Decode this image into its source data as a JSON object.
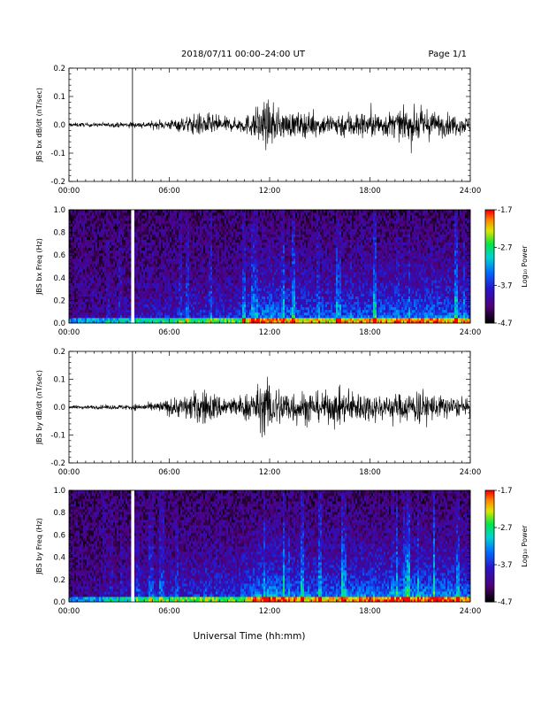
{
  "header": {
    "title": "2018/07/11  00:00–24:00 UT",
    "page": "Page 1/1"
  },
  "xlabel": "Universal Time (hh:mm)",
  "chart_data": [
    {
      "type": "line",
      "ylabel": "JBS bx dB/dt (nT/sec)",
      "xlim": [
        0,
        24
      ],
      "x_ticks": [
        "00:00",
        "06:00",
        "12:00",
        "18:00",
        "24:00"
      ],
      "ylim": [
        -0.2,
        0.2
      ],
      "y_ticks": [
        "0.2",
        "0.1",
        "0.0",
        "-0.1",
        "-0.2"
      ],
      "marker_hour": 3.8,
      "envelope": {
        "hours": [
          0,
          1,
          2,
          3,
          4,
          5,
          6,
          7,
          8,
          9,
          10,
          11,
          11.5,
          12,
          12.5,
          13,
          14,
          15,
          16,
          17,
          18,
          19,
          20,
          21,
          22,
          23,
          24
        ],
        "amplitude": [
          0.005,
          0.005,
          0.005,
          0.006,
          0.007,
          0.008,
          0.012,
          0.02,
          0.03,
          0.02,
          0.015,
          0.03,
          0.06,
          0.05,
          0.04,
          0.03,
          0.03,
          0.025,
          0.03,
          0.035,
          0.03,
          0.03,
          0.035,
          0.04,
          0.03,
          0.025,
          0.02
        ]
      }
    },
    {
      "type": "heatmap",
      "ylabel": "JBS bx Freq (Hz)",
      "xlim": [
        0,
        24
      ],
      "x_ticks": [
        "00:00",
        "06:00",
        "12:00",
        "18:00",
        "24:00"
      ],
      "ylim": [
        0,
        1.0
      ],
      "y_ticks": [
        "1.0",
        "0.8",
        "0.6",
        "0.4",
        "0.2",
        "0.0"
      ],
      "colorbar": {
        "label": "Log₁₀ Power",
        "ticks": [
          "-1.7",
          "-2.7",
          "-3.7",
          "-4.7"
        ],
        "range": [
          -4.7,
          -1.7
        ]
      },
      "gap_hour": 3.8,
      "activity": {
        "hours": [
          0,
          2,
          4,
          6,
          8,
          10,
          11,
          12,
          13,
          14,
          16,
          18,
          20,
          22,
          24
        ],
        "level": [
          0.1,
          0.15,
          0.25,
          0.3,
          0.35,
          0.35,
          0.55,
          0.65,
          0.55,
          0.5,
          0.5,
          0.55,
          0.55,
          0.6,
          0.5
        ]
      }
    },
    {
      "type": "line",
      "ylabel": "JBS by dB/dt (nT/sec)",
      "xlim": [
        0,
        24
      ],
      "x_ticks": [
        "00:00",
        "06:00",
        "12:00",
        "18:00",
        "24:00"
      ],
      "ylim": [
        -0.2,
        0.2
      ],
      "y_ticks": [
        "0.2",
        "0.1",
        "0.0",
        "-0.1",
        "-0.2"
      ],
      "marker_hour": 3.8,
      "envelope": {
        "hours": [
          0,
          1,
          2,
          3,
          4,
          5,
          6,
          7,
          8,
          9,
          10,
          11,
          11.5,
          12,
          12.5,
          13,
          14,
          15,
          16,
          17,
          18,
          19,
          20,
          21,
          22,
          23,
          24
        ],
        "amplitude": [
          0.004,
          0.005,
          0.005,
          0.006,
          0.008,
          0.01,
          0.02,
          0.03,
          0.045,
          0.03,
          0.025,
          0.04,
          0.06,
          0.07,
          0.05,
          0.045,
          0.04,
          0.035,
          0.04,
          0.04,
          0.035,
          0.03,
          0.035,
          0.045,
          0.03,
          0.025,
          0.015
        ]
      }
    },
    {
      "type": "heatmap",
      "ylabel": "JBS by Freq (Hz)",
      "xlim": [
        0,
        24
      ],
      "x_ticks": [
        "00:00",
        "06:00",
        "12:00",
        "18:00",
        "24:00"
      ],
      "ylim": [
        0,
        1.0
      ],
      "y_ticks": [
        "1.0",
        "0.8",
        "0.6",
        "0.4",
        "0.2",
        "0.0"
      ],
      "colorbar": {
        "label": "Log₁₀ Power",
        "ticks": [
          "-1.7",
          "-2.7",
          "-3.7",
          "-4.7"
        ],
        "range": [
          -4.7,
          -1.7
        ]
      },
      "gap_hour": 3.8,
      "activity": {
        "hours": [
          0,
          2,
          4,
          6,
          8,
          10,
          11,
          12,
          13,
          14,
          16,
          18,
          20,
          22,
          24
        ],
        "level": [
          0.1,
          0.15,
          0.3,
          0.35,
          0.4,
          0.4,
          0.6,
          0.7,
          0.6,
          0.55,
          0.55,
          0.6,
          0.6,
          0.65,
          0.55
        ]
      }
    }
  ]
}
